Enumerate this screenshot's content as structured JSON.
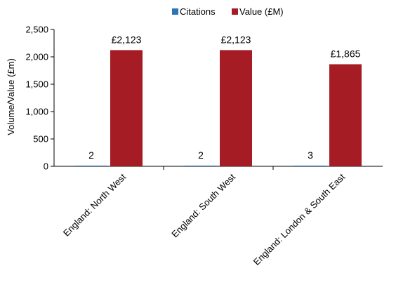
{
  "chart_data": {
    "type": "bar",
    "categories": [
      "England: North West",
      "England: South West",
      "England: London & South East"
    ],
    "series": [
      {
        "name": "Citations",
        "values": [
          2,
          2,
          3
        ],
        "color": "#2e75b6",
        "labels": [
          "2",
          "2",
          "3"
        ]
      },
      {
        "name": "Value (£M)",
        "values": [
          2123,
          2123,
          1865
        ],
        "color": "#a51c24",
        "labels": [
          "£2,123",
          "£2,123",
          "£1,865"
        ]
      }
    ],
    "ylabel": "Volume/Value (£m)",
    "ylim": [
      0,
      2500
    ],
    "yticks": [
      0,
      500,
      1000,
      1500,
      2000,
      2500
    ],
    "ytick_labels": [
      "0",
      "500",
      "1,000",
      "1,500",
      "2,000",
      "2,500"
    ],
    "legend_position": "top",
    "grid": false
  }
}
